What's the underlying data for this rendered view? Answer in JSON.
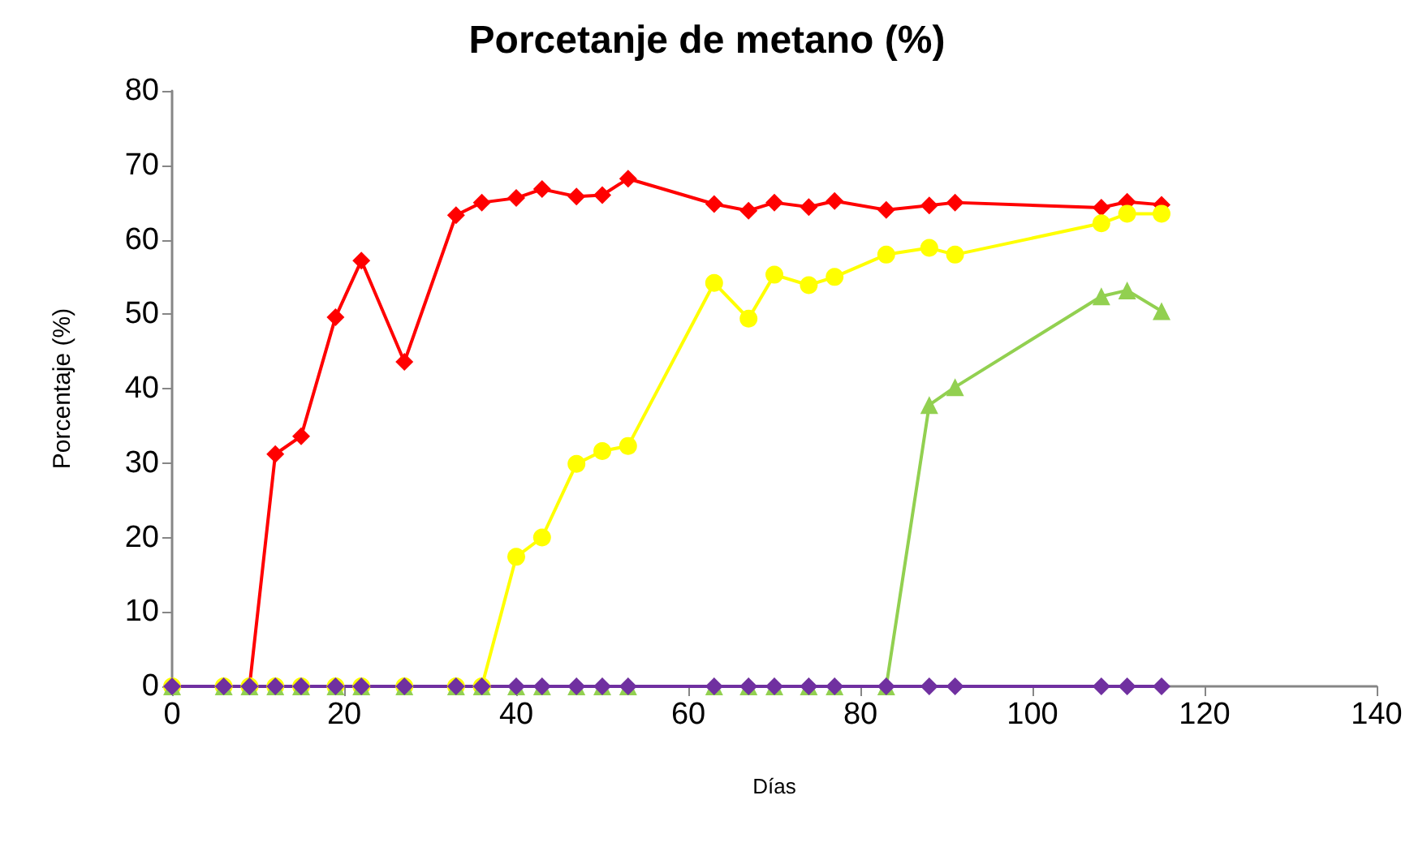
{
  "chart_data": {
    "type": "line",
    "title": "Porcetanje de metano (%)",
    "xlabel": "Días",
    "ylabel": "Porcentaje (%)",
    "x": [
      0,
      6,
      9,
      12,
      15,
      19,
      22,
      27,
      33,
      36,
      40,
      43,
      47,
      50,
      53,
      63,
      67,
      70,
      74,
      77,
      83,
      88,
      91,
      108,
      111,
      115
    ],
    "series": [
      {
        "color": "#ff0000",
        "marker": "diamond",
        "values": [
          0,
          0,
          0,
          31.2,
          33.6,
          49.6,
          57.2,
          43.6,
          63.3,
          65,
          65.6,
          66.8,
          65.8,
          66,
          68.2,
          64.8,
          63.9,
          65,
          64.4,
          65.2,
          64,
          64.6,
          65,
          64.3,
          65.1,
          64.7
        ]
      },
      {
        "color": "#ffff00",
        "marker": "circle",
        "values": [
          0,
          0,
          0,
          0,
          0,
          0,
          0,
          0,
          0,
          0,
          17.4,
          20,
          29.9,
          31.6,
          32.3,
          54.2,
          49.4,
          55.3,
          53.9,
          55,
          58,
          58.9,
          58,
          62.2,
          63.5,
          63.5
        ]
      },
      {
        "color": "#92d050",
        "marker": "triangle",
        "values": [
          0,
          0,
          0,
          0,
          0,
          0,
          0,
          0,
          0,
          0,
          0,
          0,
          0,
          0,
          0,
          0,
          0,
          0,
          0,
          0,
          0,
          37.8,
          40.2,
          52.4,
          53.2,
          50.4
        ]
      },
      {
        "color": "#7030a0",
        "marker": "diamond",
        "values": [
          0,
          0,
          0,
          0,
          0,
          0,
          0,
          0,
          0,
          0,
          0,
          0,
          0,
          0,
          0,
          0,
          0,
          0,
          0,
          0,
          0,
          0,
          0,
          0,
          0,
          0
        ]
      }
    ],
    "xlim": [
      0,
      140
    ],
    "xticks": [
      0,
      20,
      40,
      60,
      80,
      100,
      120,
      140
    ],
    "ylim": [
      0,
      80
    ],
    "yticks": [
      0,
      10,
      20,
      30,
      40,
      50,
      60,
      70,
      80
    ],
    "grid": false
  }
}
